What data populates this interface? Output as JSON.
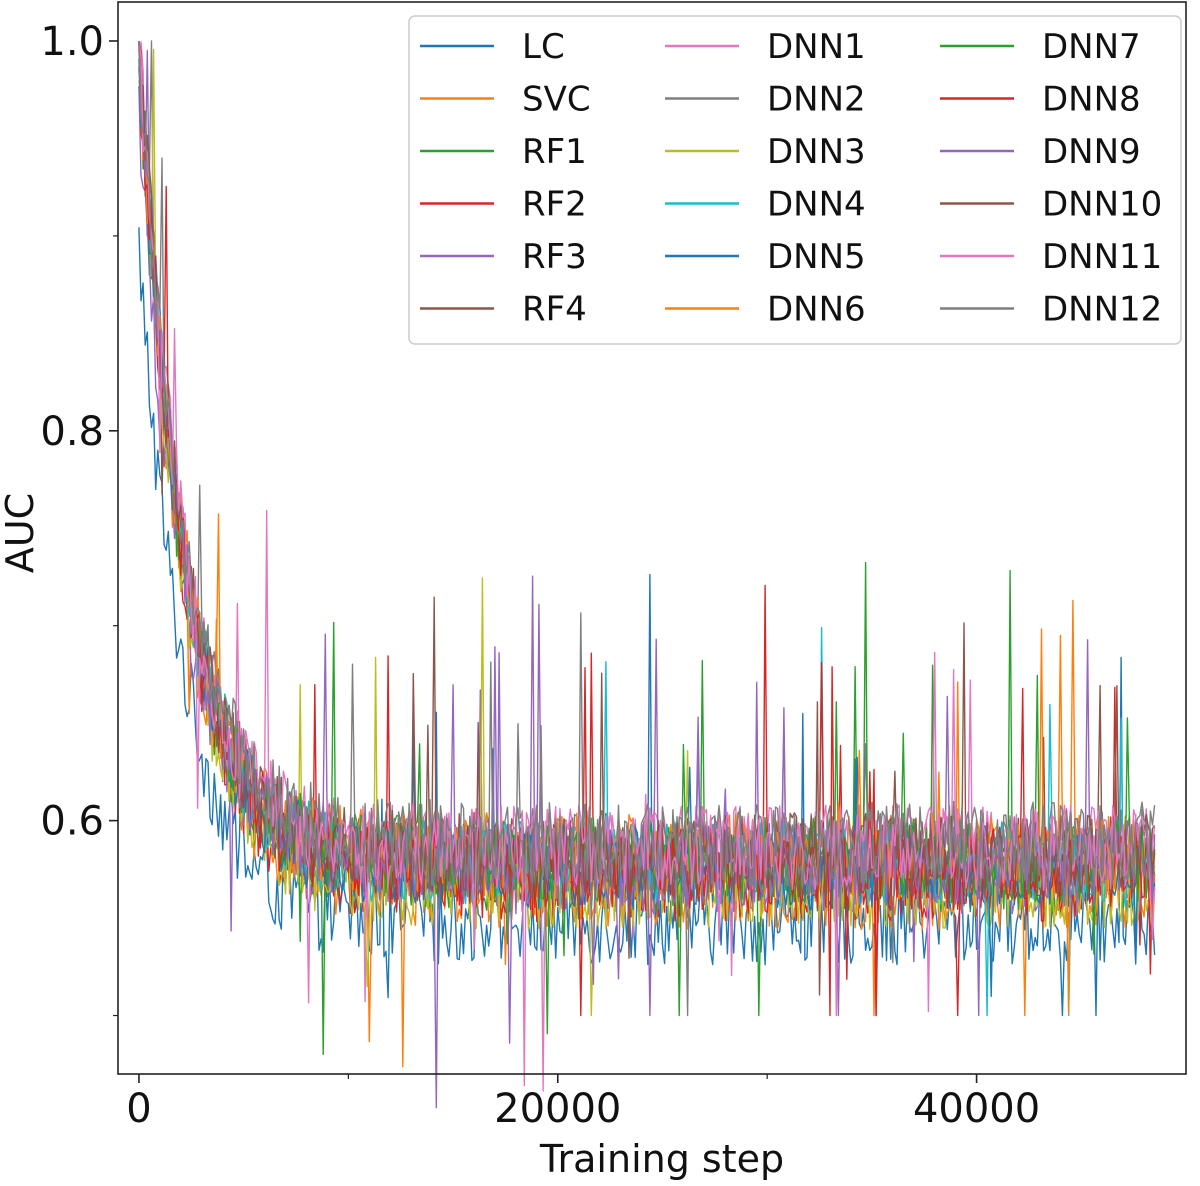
{
  "chart_data": {
    "type": "line",
    "title": "",
    "xlabel": "Training step",
    "ylabel": "AUC",
    "xlim": [
      -1000,
      50000
    ],
    "ylim": [
      0.47,
      1.02
    ],
    "x_ticks": [
      {
        "value": 0,
        "label": "0"
      },
      {
        "value": 20000,
        "label": "20000"
      },
      {
        "value": 40000,
        "label": "40000"
      }
    ],
    "x_minor_ticks": [
      10000,
      30000
    ],
    "y_ticks": [
      {
        "value": 0.6,
        "label": "0.6"
      },
      {
        "value": 0.8,
        "label": "0.8"
      },
      {
        "value": 1.0,
        "label": "1.0"
      }
    ],
    "y_minor_ticks": [
      0.5,
      0.7,
      0.9
    ],
    "grid": false,
    "legend": {
      "placement": "top-right",
      "columns": 3
    },
    "curve_model": {
      "x_start": 0,
      "x_end": 48500,
      "step": 100,
      "decay_scale_steps": 2200,
      "noise_amplitude": 0.022,
      "spike_probability": 0.018,
      "spike_amplitude": 0.1,
      "clip_min": 0.5
    },
    "series": [
      {
        "name": "LC",
        "color": "#1f77b4",
        "start": 0.895,
        "plateau": 0.548
      },
      {
        "name": "SVC",
        "color": "#ff7f0e",
        "start": 0.99,
        "plateau": 0.566
      },
      {
        "name": "RF1",
        "color": "#2ca02c",
        "start": 0.985,
        "plateau": 0.575
      },
      {
        "name": "RF2",
        "color": "#d62728",
        "start": 0.99,
        "plateau": 0.57
      },
      {
        "name": "RF3",
        "color": "#9467bd",
        "start": 0.955,
        "plateau": 0.574
      },
      {
        "name": "RF4",
        "color": "#8c564b",
        "start": 0.995,
        "plateau": 0.58
      },
      {
        "name": "DNN1",
        "color": "#e377c2",
        "start": 1.0,
        "plateau": 0.586
      },
      {
        "name": "DNN2",
        "color": "#7f7f7f",
        "start": 1.0,
        "plateau": 0.584
      },
      {
        "name": "DNN3",
        "color": "#bcbd22",
        "start": 0.99,
        "plateau": 0.566
      },
      {
        "name": "DNN4",
        "color": "#17becf",
        "start": 0.998,
        "plateau": 0.578
      },
      {
        "name": "DNN5",
        "color": "#1f77b4",
        "start": 0.995,
        "plateau": 0.576
      },
      {
        "name": "DNN6",
        "color": "#ff7f0e",
        "start": 0.997,
        "plateau": 0.582
      },
      {
        "name": "DNN7",
        "color": "#2ca02c",
        "start": 0.998,
        "plateau": 0.58
      },
      {
        "name": "DNN8",
        "color": "#d62728",
        "start": 0.996,
        "plateau": 0.576
      },
      {
        "name": "DNN9",
        "color": "#9467bd",
        "start": 0.997,
        "plateau": 0.578
      },
      {
        "name": "DNN10",
        "color": "#8c564b",
        "start": 0.999,
        "plateau": 0.582
      },
      {
        "name": "DNN11",
        "color": "#e377c2",
        "start": 1.0,
        "plateau": 0.586
      },
      {
        "name": "DNN12",
        "color": "#7f7f7f",
        "start": 1.0,
        "plateau": 0.588
      }
    ]
  }
}
